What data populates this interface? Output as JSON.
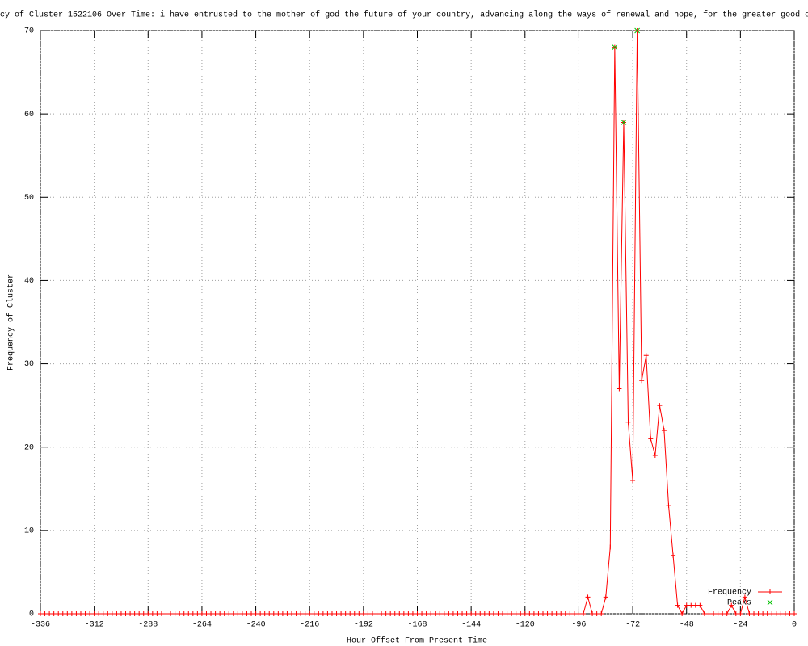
{
  "chart_data": {
    "type": "line",
    "title": "cy of Cluster 1522106 Over Time: i have entrusted to the mother of god the future of your country, advancing along the ways of renewal and hope, for the greater good o",
    "x_label": "Hour Offset From Present Time",
    "y_label": "Frequency of Cluster",
    "x": [
      -336,
      -334,
      -332,
      -330,
      -328,
      -326,
      -324,
      -322,
      -320,
      -318,
      -316,
      -314,
      -312,
      -310,
      -308,
      -306,
      -304,
      -302,
      -300,
      -298,
      -296,
      -294,
      -292,
      -290,
      -288,
      -286,
      -284,
      -282,
      -280,
      -278,
      -276,
      -274,
      -272,
      -270,
      -268,
      -266,
      -264,
      -262,
      -260,
      -258,
      -256,
      -254,
      -252,
      -250,
      -248,
      -246,
      -244,
      -242,
      -240,
      -238,
      -236,
      -234,
      -232,
      -230,
      -228,
      -226,
      -224,
      -222,
      -220,
      -218,
      -216,
      -214,
      -212,
      -210,
      -208,
      -206,
      -204,
      -202,
      -200,
      -198,
      -196,
      -194,
      -192,
      -190,
      -188,
      -186,
      -184,
      -182,
      -180,
      -178,
      -176,
      -174,
      -172,
      -170,
      -168,
      -166,
      -164,
      -162,
      -160,
      -158,
      -156,
      -154,
      -152,
      -150,
      -148,
      -146,
      -144,
      -142,
      -140,
      -138,
      -136,
      -134,
      -132,
      -130,
      -128,
      -126,
      -124,
      -122,
      -120,
      -118,
      -116,
      -114,
      -112,
      -110,
      -108,
      -106,
      -104,
      -102,
      -100,
      -98,
      -96,
      -94,
      -92,
      -90,
      -88,
      -86,
      -84,
      -82,
      -80,
      -78,
      -76,
      -74,
      -72,
      -70,
      -68,
      -66,
      -64,
      -62,
      -60,
      -58,
      -56,
      -54,
      -52,
      -50,
      -48,
      -46,
      -44,
      -42,
      -40,
      -38,
      -36,
      -34,
      -32,
      -30,
      -28,
      -26,
      -24,
      -22,
      -20,
      -18,
      -16,
      -14,
      -12,
      -10,
      -8,
      -6,
      -4,
      -2,
      0
    ],
    "series": [
      {
        "name": "Frequency",
        "color": "#ff0000",
        "values": [
          0,
          0,
          0,
          0,
          0,
          0,
          0,
          0,
          0,
          0,
          0,
          0,
          0,
          0,
          0,
          0,
          0,
          0,
          0,
          0,
          0,
          0,
          0,
          0,
          0,
          0,
          0,
          0,
          0,
          0,
          0,
          0,
          0,
          0,
          0,
          0,
          0,
          0,
          0,
          0,
          0,
          0,
          0,
          0,
          0,
          0,
          0,
          0,
          0,
          0,
          0,
          0,
          0,
          0,
          0,
          0,
          0,
          0,
          0,
          0,
          0,
          0,
          0,
          0,
          0,
          0,
          0,
          0,
          0,
          0,
          0,
          0,
          0,
          0,
          0,
          0,
          0,
          0,
          0,
          0,
          0,
          0,
          0,
          0,
          0,
          0,
          0,
          0,
          0,
          0,
          0,
          0,
          0,
          0,
          0,
          0,
          0,
          0,
          0,
          0,
          0,
          0,
          0,
          0,
          0,
          0,
          0,
          0,
          0,
          0,
          0,
          0,
          0,
          0,
          0,
          0,
          0,
          0,
          0,
          0,
          0,
          0,
          2,
          0,
          0,
          0,
          2,
          8,
          68,
          27,
          59,
          23,
          16,
          70,
          28,
          31,
          21,
          19,
          25,
          22,
          13,
          7,
          1,
          0,
          1,
          1,
          1,
          1,
          0,
          0,
          0,
          0,
          0,
          0,
          1,
          0,
          0,
          2,
          0,
          0,
          0,
          0,
          0,
          0,
          0,
          0,
          0,
          0,
          0
        ]
      },
      {
        "name": "Peaks",
        "color": "#00c000",
        "x": [
          -80,
          -76,
          -70
        ],
        "values": [
          68,
          59,
          70
        ]
      }
    ],
    "xlim": [
      -336,
      0
    ],
    "ylim": [
      0,
      70
    ],
    "xticks": [
      -336,
      -312,
      -288,
      -264,
      -240,
      -216,
      -192,
      -168,
      -144,
      -120,
      -96,
      -72,
      -48,
      -24,
      0
    ],
    "yticks": [
      0,
      10,
      20,
      30,
      40,
      50,
      60,
      70
    ],
    "grid": true,
    "legend": "lower-right"
  }
}
